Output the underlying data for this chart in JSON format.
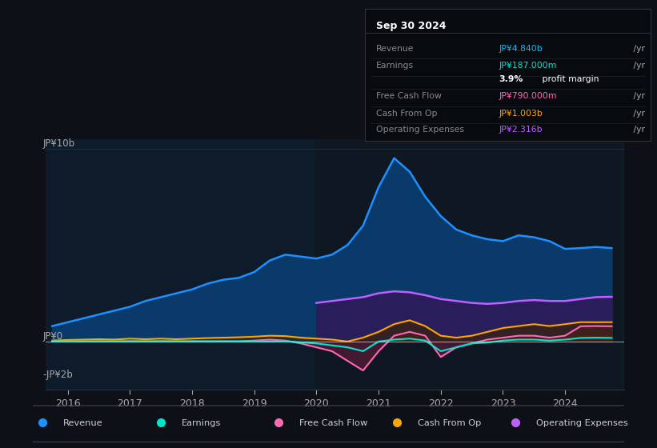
{
  "bg_color": "#0d1117",
  "plot_bg_color": "#0d1b2a",
  "title": "Sep 30 2024",
  "info_box_rows": [
    {
      "label": "Revenue",
      "value": "JP¥4.840b",
      "color": "#00bfff"
    },
    {
      "label": "Earnings",
      "value": "JP¥187.000m",
      "color": "#00e5cc"
    },
    {
      "label": "",
      "value": "3.9% profit margin",
      "color": "#ffffff",
      "bold_prefix": "3.9%"
    },
    {
      "label": "Free Cash Flow",
      "value": "JP¥790.000m",
      "color": "#ff69b4"
    },
    {
      "label": "Cash From Op",
      "value": "JP¥1.003b",
      "color": "#ffa500"
    },
    {
      "label": "Operating Expenses",
      "value": "JP¥2.316b",
      "color": "#bf5fff"
    }
  ],
  "ylabel_top": "JP¥10b",
  "ylabel_zero": "JP¥0",
  "ylabel_neg": "-JP¥2b",
  "years": [
    2015.75,
    2016.0,
    2016.25,
    2016.5,
    2016.75,
    2017.0,
    2017.25,
    2017.5,
    2017.75,
    2018.0,
    2018.25,
    2018.5,
    2018.75,
    2019.0,
    2019.25,
    2019.5,
    2019.75,
    2020.0,
    2020.25,
    2020.5,
    2020.75,
    2021.0,
    2021.25,
    2021.5,
    2021.75,
    2022.0,
    2022.25,
    2022.5,
    2022.75,
    2023.0,
    2023.25,
    2023.5,
    2023.75,
    2024.0,
    2024.25,
    2024.5,
    2024.75
  ],
  "revenue": [
    0.8,
    1.0,
    1.2,
    1.4,
    1.6,
    1.8,
    2.1,
    2.3,
    2.5,
    2.7,
    3.0,
    3.2,
    3.3,
    3.6,
    4.2,
    4.5,
    4.4,
    4.3,
    4.5,
    5.0,
    6.0,
    8.0,
    9.5,
    8.8,
    7.5,
    6.5,
    5.8,
    5.5,
    5.3,
    5.2,
    5.5,
    5.4,
    5.2,
    4.8,
    4.84,
    4.9,
    4.84
  ],
  "earnings": [
    0.0,
    0.02,
    0.01,
    0.02,
    0.01,
    0.02,
    0.01,
    0.02,
    0.01,
    0.02,
    0.01,
    0.02,
    0.01,
    0.02,
    0.01,
    0.02,
    -0.05,
    -0.1,
    -0.2,
    -0.3,
    -0.5,
    0.0,
    0.1,
    0.15,
    0.05,
    -0.5,
    -0.3,
    -0.1,
    -0.05,
    0.05,
    0.1,
    0.1,
    0.05,
    0.1,
    0.187,
    0.2,
    0.187
  ],
  "free_cash_flow": [
    0.0,
    0.01,
    0.02,
    0.01,
    0.02,
    0.01,
    0.02,
    0.01,
    0.02,
    0.0,
    0.01,
    0.0,
    0.01,
    0.05,
    0.1,
    0.05,
    -0.1,
    -0.3,
    -0.5,
    -1.0,
    -1.5,
    -0.5,
    0.3,
    0.5,
    0.3,
    -0.8,
    -0.3,
    -0.1,
    0.1,
    0.2,
    0.3,
    0.3,
    0.2,
    0.3,
    0.79,
    0.8,
    0.79
  ],
  "cash_from_op": [
    0.05,
    0.08,
    0.1,
    0.12,
    0.1,
    0.15,
    0.12,
    0.15,
    0.12,
    0.15,
    0.18,
    0.2,
    0.22,
    0.25,
    0.3,
    0.28,
    0.2,
    0.15,
    0.1,
    0.0,
    0.2,
    0.5,
    0.9,
    1.1,
    0.8,
    0.3,
    0.2,
    0.3,
    0.5,
    0.7,
    0.8,
    0.9,
    0.8,
    0.9,
    1.003,
    1.0,
    1.003
  ],
  "op_expenses_start_year": 2020.0,
  "op_expenses": [
    2.0,
    2.1,
    2.2,
    2.3,
    2.5,
    2.6,
    2.55,
    2.4,
    2.2,
    2.1,
    2.0,
    1.95,
    2.0,
    2.1,
    2.15,
    2.1,
    2.1,
    2.2,
    2.3,
    2.316
  ],
  "revenue_color": "#1e90ff",
  "revenue_fill": "#0a3a6a",
  "earnings_color": "#00e5cc",
  "fcf_color": "#ff69b4",
  "fcf_fill": "#5a1a3a",
  "cop_color": "#ffa500",
  "cop_fill": "#3a2500",
  "op_exp_color": "#bf5fff",
  "op_exp_fill": "#2d1a5a",
  "legend_items": [
    {
      "label": "Revenue",
      "color": "#1e90ff"
    },
    {
      "label": "Earnings",
      "color": "#00e5cc"
    },
    {
      "label": "Free Cash Flow",
      "color": "#ff69b4"
    },
    {
      "label": "Cash From Op",
      "color": "#ffa500"
    },
    {
      "label": "Operating Expenses",
      "color": "#bf5fff"
    }
  ],
  "xticks": [
    2016,
    2017,
    2018,
    2019,
    2020,
    2021,
    2022,
    2023,
    2024
  ],
  "ylim": [
    -2.5,
    10.5
  ],
  "y_zero": 0.0,
  "y_top": 10.0,
  "y_neg": -2.0
}
